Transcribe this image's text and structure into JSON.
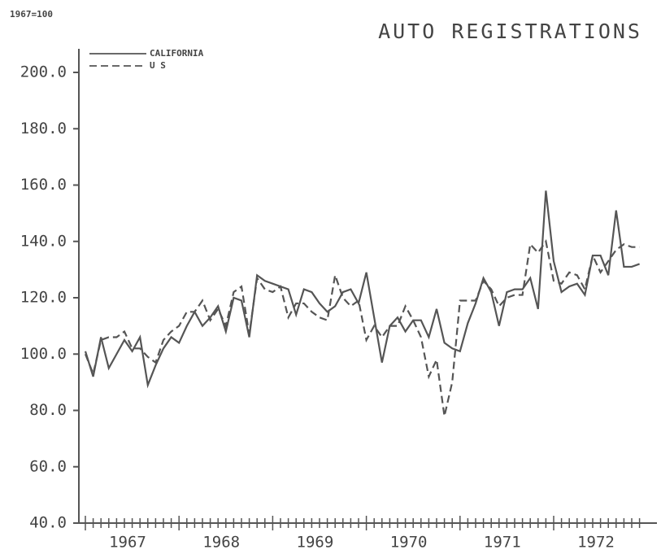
{
  "chart_data": {
    "type": "line",
    "title": "AUTO REGISTRATIONS",
    "annotation": "1967=100",
    "categories": [
      null,
      null,
      null,
      null,
      null,
      "1967",
      null,
      null,
      null,
      null,
      null,
      null,
      null,
      null,
      null,
      null,
      null,
      "1968",
      null,
      null,
      null,
      null,
      null,
      null,
      null,
      null,
      null,
      null,
      null,
      "1969",
      null,
      null,
      null,
      null,
      null,
      null,
      null,
      null,
      null,
      null,
      null,
      "1970",
      null,
      null,
      null,
      null,
      null,
      null,
      null,
      null,
      null,
      null,
      null,
      "1971",
      null,
      null,
      null,
      null,
      null,
      null,
      null,
      null,
      null,
      null,
      null,
      "1972",
      null,
      null,
      null,
      null,
      null,
      null
    ],
    "series": [
      {
        "name": "CALIFORNIA",
        "color": "#555555",
        "dash": false,
        "values": [
          101,
          92,
          106,
          95,
          100,
          105,
          101,
          106,
          89,
          96,
          102,
          106,
          104,
          110,
          115,
          110,
          113,
          117,
          108,
          120,
          119,
          106,
          128,
          126,
          125,
          124,
          123,
          114,
          123,
          122,
          118,
          115,
          117,
          122,
          123,
          118,
          129,
          113,
          97,
          110,
          113,
          108,
          112,
          112,
          106,
          116,
          104,
          102,
          101,
          111,
          118,
          127,
          122,
          110,
          122,
          123,
          123,
          127,
          116,
          158,
          133,
          122,
          124,
          125,
          121,
          135,
          135,
          128,
          151,
          131,
          131,
          132
        ]
      },
      {
        "name": "U S",
        "color": "#555555",
        "dash": true,
        "values": [
          100,
          93,
          105,
          106,
          106,
          108,
          102,
          102,
          99,
          97,
          105,
          108,
          110,
          115,
          115,
          119,
          112,
          116,
          110,
          122,
          124,
          107,
          127,
          123,
          122,
          124,
          113,
          118,
          118,
          115,
          113,
          112,
          128,
          120,
          117,
          119,
          105,
          110,
          106,
          110,
          110,
          117,
          112,
          106,
          92,
          98,
          78,
          90,
          119,
          119,
          119,
          126,
          123,
          117,
          120,
          121,
          121,
          139,
          136,
          140,
          126,
          125,
          129,
          128,
          123,
          135,
          129,
          133,
          137,
          139,
          138,
          138
        ]
      }
    ],
    "ylim": [
      40,
      200
    ],
    "yticks": [
      {
        "value": 40,
        "label": "40.0"
      },
      {
        "value": 60,
        "label": "60.0"
      },
      {
        "value": 80,
        "label": "80.0"
      },
      {
        "value": 100,
        "label": "100.0"
      },
      {
        "value": 120,
        "label": "120.0"
      },
      {
        "value": 140,
        "label": "140.0"
      },
      {
        "value": 160,
        "label": "160.0"
      },
      {
        "value": 180,
        "label": "180.0"
      },
      {
        "value": 200,
        "label": "200.0"
      }
    ]
  }
}
